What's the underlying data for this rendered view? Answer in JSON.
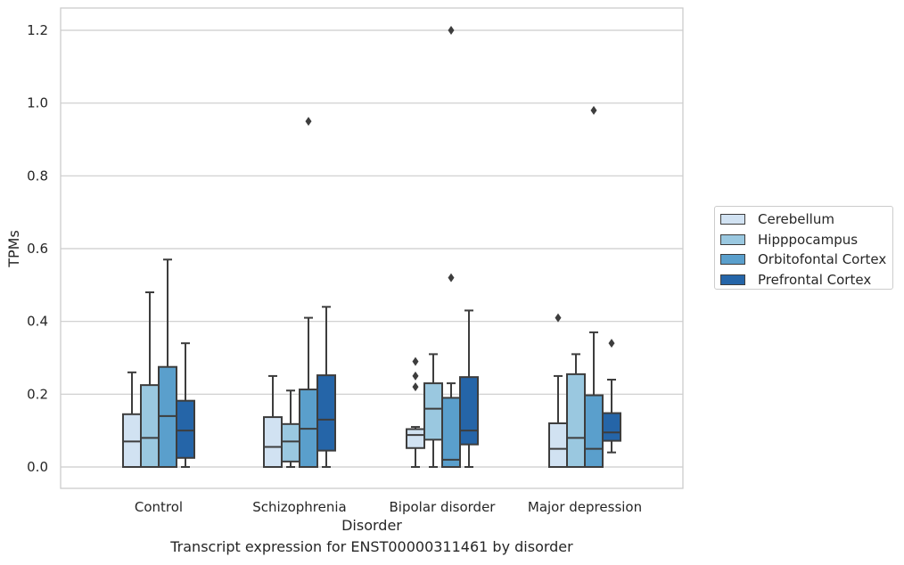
{
  "chart_data": {
    "type": "box",
    "title": "",
    "xlabel": "Disorder",
    "ylabel": "TPMs",
    "caption": "Transcript expression for ENST00000311461 by disorder",
    "ylim": [
      -0.06,
      1.26
    ],
    "yticks": [
      0.0,
      0.2,
      0.4,
      0.6,
      0.8,
      1.0,
      1.2
    ],
    "ytick_labels": [
      "0.0",
      "0.2",
      "0.4",
      "0.6",
      "0.8",
      "1.0",
      "1.2"
    ],
    "grid": "horizontal",
    "legend_position": "right",
    "categories": [
      "Control",
      "Schizophrenia",
      "Bipolar disorder",
      "Major depression"
    ],
    "series": [
      {
        "name": "Cerebellum",
        "color": "#d1e2f2",
        "boxes": [
          {
            "whisker_low": 0.0,
            "q1": 0.0,
            "median": 0.07,
            "q3": 0.145,
            "whisker_high": 0.26,
            "outliers": []
          },
          {
            "whisker_low": 0.0,
            "q1": 0.0,
            "median": 0.055,
            "q3": 0.137,
            "whisker_high": 0.25,
            "outliers": []
          },
          {
            "whisker_low": 0.0,
            "q1": 0.052,
            "median": 0.088,
            "q3": 0.104,
            "whisker_high": 0.11,
            "outliers": [
              0.22,
              0.25,
              0.29
            ]
          },
          {
            "whisker_low": 0.0,
            "q1": 0.0,
            "median": 0.05,
            "q3": 0.12,
            "whisker_high": 0.25,
            "outliers": [
              0.41
            ]
          }
        ]
      },
      {
        "name": "Hipppocampus",
        "color": "#9ac8e0",
        "boxes": [
          {
            "whisker_low": 0.0,
            "q1": 0.0,
            "median": 0.08,
            "q3": 0.225,
            "whisker_high": 0.48,
            "outliers": []
          },
          {
            "whisker_low": 0.0,
            "q1": 0.015,
            "median": 0.07,
            "q3": 0.118,
            "whisker_high": 0.21,
            "outliers": []
          },
          {
            "whisker_low": 0.0,
            "q1": 0.075,
            "median": 0.16,
            "q3": 0.23,
            "whisker_high": 0.31,
            "outliers": []
          },
          {
            "whisker_low": 0.0,
            "q1": 0.0,
            "median": 0.08,
            "q3": 0.255,
            "whisker_high": 0.31,
            "outliers": []
          }
        ]
      },
      {
        "name": "Orbitofontal Cortex",
        "color": "#5a9fcc",
        "boxes": [
          {
            "whisker_low": 0.0,
            "q1": 0.0,
            "median": 0.14,
            "q3": 0.275,
            "whisker_high": 0.57,
            "outliers": []
          },
          {
            "whisker_low": 0.0,
            "q1": 0.0,
            "median": 0.105,
            "q3": 0.213,
            "whisker_high": 0.41,
            "outliers": [
              0.95
            ]
          },
          {
            "whisker_low": 0.0,
            "q1": 0.0,
            "median": 0.02,
            "q3": 0.19,
            "whisker_high": 0.23,
            "outliers": [
              0.52,
              1.2
            ]
          },
          {
            "whisker_low": 0.0,
            "q1": 0.0,
            "median": 0.05,
            "q3": 0.197,
            "whisker_high": 0.37,
            "outliers": [
              0.98
            ]
          }
        ]
      },
      {
        "name": "Prefrontal Cortex",
        "color": "#2565a8",
        "boxes": [
          {
            "whisker_low": 0.0,
            "q1": 0.025,
            "median": 0.1,
            "q3": 0.182,
            "whisker_high": 0.34,
            "outliers": []
          },
          {
            "whisker_low": 0.0,
            "q1": 0.045,
            "median": 0.13,
            "q3": 0.252,
            "whisker_high": 0.44,
            "outliers": []
          },
          {
            "whisker_low": 0.0,
            "q1": 0.062,
            "median": 0.1,
            "q3": 0.247,
            "whisker_high": 0.43,
            "outliers": []
          },
          {
            "whisker_low": 0.04,
            "q1": 0.072,
            "median": 0.095,
            "q3": 0.148,
            "whisker_high": 0.24,
            "outliers": [
              0.34
            ]
          }
        ]
      }
    ]
  }
}
